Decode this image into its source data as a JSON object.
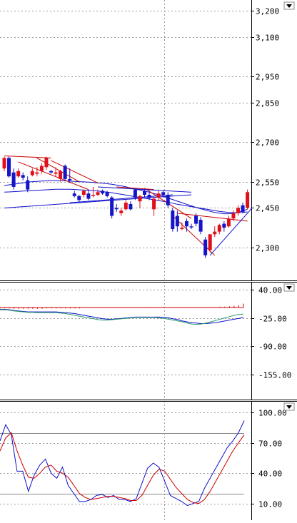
{
  "chart_data": [
    {
      "type": "candlestick",
      "panel": "price",
      "yticks": [
        3200,
        3100,
        2950,
        2850,
        2700,
        2550,
        2450,
        2300
      ],
      "ytick_labels": [
        "3,200",
        "3,100",
        "2,950",
        "2,850",
        "2,700",
        "2,550",
        "2,450",
        "2,300"
      ],
      "ylim": [
        2180,
        3235
      ],
      "grid": true,
      "candles": [
        {
          "o": 2600,
          "h": 2645,
          "l": 2590,
          "c": 2640,
          "up": true
        },
        {
          "o": 2640,
          "h": 2645,
          "l": 2565,
          "c": 2570,
          "up": false
        },
        {
          "o": 2585,
          "h": 2600,
          "l": 2520,
          "c": 2530,
          "up": false
        },
        {
          "o": 2570,
          "h": 2600,
          "l": 2565,
          "c": 2590,
          "up": true
        },
        {
          "o": 2575,
          "h": 2585,
          "l": 2555,
          "c": 2565,
          "up": false
        },
        {
          "o": 2555,
          "h": 2570,
          "l": 2510,
          "c": 2520,
          "up": false
        },
        {
          "o": 2575,
          "h": 2600,
          "l": 2570,
          "c": 2590,
          "up": true
        },
        {
          "o": 2585,
          "h": 2605,
          "l": 2570,
          "c": 2580,
          "up": true
        },
        {
          "o": 2590,
          "h": 2620,
          "l": 2580,
          "c": 2610,
          "up": true
        },
        {
          "o": 2605,
          "h": 2645,
          "l": 2595,
          "c": 2640,
          "up": true
        },
        {
          "o": 2590,
          "h": 2595,
          "l": 2580,
          "c": 2585,
          "up": false
        },
        {
          "o": 2585,
          "h": 2605,
          "l": 2570,
          "c": 2580,
          "up": true
        },
        {
          "o": 2560,
          "h": 2595,
          "l": 2550,
          "c": 2590,
          "up": true
        },
        {
          "o": 2610,
          "h": 2615,
          "l": 2555,
          "c": 2560,
          "up": false
        },
        {
          "o": 2560,
          "h": 2600,
          "l": 2545,
          "c": 2555,
          "up": false
        },
        {
          "o": 2505,
          "h": 2515,
          "l": 2490,
          "c": 2495,
          "up": false
        },
        {
          "o": 2495,
          "h": 2500,
          "l": 2470,
          "c": 2480,
          "up": false
        },
        {
          "o": 2500,
          "h": 2520,
          "l": 2490,
          "c": 2515,
          "up": true
        },
        {
          "o": 2505,
          "h": 2520,
          "l": 2480,
          "c": 2485,
          "up": false
        },
        {
          "o": 2500,
          "h": 2530,
          "l": 2490,
          "c": 2500,
          "up": true
        },
        {
          "o": 2500,
          "h": 2520,
          "l": 2495,
          "c": 2510,
          "up": true
        },
        {
          "o": 2515,
          "h": 2520,
          "l": 2500,
          "c": 2505,
          "up": false
        },
        {
          "o": 2510,
          "h": 2515,
          "l": 2490,
          "c": 2495,
          "up": false
        },
        {
          "o": 2490,
          "h": 2495,
          "l": 2410,
          "c": 2420,
          "up": false
        },
        {
          "o": 2450,
          "h": 2465,
          "l": 2435,
          "c": 2445,
          "up": false
        },
        {
          "o": 2430,
          "h": 2450,
          "l": 2420,
          "c": 2440,
          "up": true
        },
        {
          "o": 2445,
          "h": 2480,
          "l": 2440,
          "c": 2470,
          "up": true
        },
        {
          "o": 2465,
          "h": 2475,
          "l": 2440,
          "c": 2445,
          "up": false
        },
        {
          "o": 2520,
          "h": 2525,
          "l": 2480,
          "c": 2490,
          "up": false
        },
        {
          "o": 2475,
          "h": 2500,
          "l": 2450,
          "c": 2495,
          "up": true
        },
        {
          "o": 2515,
          "h": 2520,
          "l": 2490,
          "c": 2500,
          "up": false
        },
        {
          "o": 2500,
          "h": 2515,
          "l": 2480,
          "c": 2490,
          "up": false
        },
        {
          "o": 2445,
          "h": 2490,
          "l": 2420,
          "c": 2485,
          "up": true
        },
        {
          "o": 2490,
          "h": 2515,
          "l": 2480,
          "c": 2505,
          "up": true
        },
        {
          "o": 2510,
          "h": 2515,
          "l": 2490,
          "c": 2500,
          "up": false
        },
        {
          "o": 2500,
          "h": 2510,
          "l": 2450,
          "c": 2460,
          "up": false
        },
        {
          "o": 2440,
          "h": 2450,
          "l": 2360,
          "c": 2370,
          "up": false
        },
        {
          "o": 2420,
          "h": 2440,
          "l": 2360,
          "c": 2380,
          "up": false
        },
        {
          "o": 2370,
          "h": 2395,
          "l": 2365,
          "c": 2375,
          "up": true
        },
        {
          "o": 2400,
          "h": 2410,
          "l": 2360,
          "c": 2380,
          "up": false
        },
        {
          "o": 2380,
          "h": 2390,
          "l": 2370,
          "c": 2380,
          "up": false
        },
        {
          "o": 2420,
          "h": 2430,
          "l": 2380,
          "c": 2390,
          "up": false
        },
        {
          "o": 2405,
          "h": 2415,
          "l": 2350,
          "c": 2360,
          "up": false
        },
        {
          "o": 2330,
          "h": 2340,
          "l": 2260,
          "c": 2270,
          "up": false
        },
        {
          "o": 2290,
          "h": 2350,
          "l": 2280,
          "c": 2350,
          "up": true
        },
        {
          "o": 2350,
          "h": 2380,
          "l": 2340,
          "c": 2360,
          "up": true
        },
        {
          "o": 2360,
          "h": 2390,
          "l": 2350,
          "c": 2385,
          "up": true
        },
        {
          "o": 2375,
          "h": 2400,
          "l": 2360,
          "c": 2390,
          "up": false
        },
        {
          "o": 2380,
          "h": 2420,
          "l": 2375,
          "c": 2410,
          "up": true
        },
        {
          "o": 2410,
          "h": 2440,
          "l": 2400,
          "c": 2430,
          "up": true
        },
        {
          "o": 2430,
          "h": 2460,
          "l": 2420,
          "c": 2450,
          "up": true
        },
        {
          "o": 2435,
          "h": 2470,
          "l": 2430,
          "c": 2460,
          "up": false
        },
        {
          "o": 2450,
          "h": 2520,
          "l": 2445,
          "c": 2510,
          "up": true
        }
      ],
      "moving_averages": [
        {
          "color": "#1010cc",
          "values": [
            2535,
            2538,
            2540,
            2543,
            2545,
            2548,
            2550,
            2551,
            2552,
            2553,
            2554,
            2554,
            2553,
            2553,
            2552,
            2551,
            2550,
            2549,
            2548,
            2547,
            2545,
            2544,
            2542,
            2540,
            2537,
            2534,
            2530,
            2526,
            2522,
            2518,
            2514,
            2510,
            2505,
            2500,
            2494,
            2488,
            2482,
            2476,
            2470,
            2464,
            2458,
            2452,
            2447,
            2442,
            2437,
            2433,
            2430,
            2428,
            2428,
            2430,
            2434,
            2439,
            2445
          ]
        },
        {
          "color": "#1010cc",
          "values": [
            2510,
            2511,
            2512,
            2513,
            2514,
            2515,
            2516,
            2517,
            2518,
            2519,
            2520,
            2521,
            2521,
            2521,
            2521,
            2520,
            2519,
            2518,
            2517,
            2516,
            2514,
            2512,
            2510,
            2508,
            2505,
            2502,
            2499,
            2496,
            2493,
            2490,
            2487,
            2484,
            2481,
            2478,
            2475,
            2472,
            2468,
            2464,
            2461,
            2458,
            2455,
            2452,
            2449,
            2446,
            2443,
            2440,
            2437,
            2435,
            2433,
            2432,
            2432,
            2433,
            2435
          ]
        }
      ],
      "trendlines": [
        {
          "color": "#cc0000",
          "points": [
            [
              0,
              2648
            ],
            [
              10,
              2640
            ]
          ]
        },
        {
          "color": "#cc0000",
          "points": [
            [
              3,
              2625
            ],
            [
              18,
              2520
            ]
          ]
        },
        {
          "color": "#cc0000",
          "points": [
            [
              7,
              2640
            ],
            [
              16,
              2550
            ]
          ]
        },
        {
          "color": "#cc0000",
          "points": [
            [
              10,
              2630
            ],
            [
              20,
              2545
            ]
          ]
        },
        {
          "color": "#cc0000",
          "points": [
            [
              24,
              2530
            ],
            [
              32,
              2520
            ]
          ]
        },
        {
          "color": "#cc0000",
          "points": [
            [
              30,
              2525
            ],
            [
              40,
              2410
            ]
          ]
        },
        {
          "color": "#cc0000",
          "points": [
            [
              36,
              2420
            ],
            [
              45,
              2270
            ]
          ]
        },
        {
          "color": "#cc0000",
          "points": [
            [
              37,
              2430
            ],
            [
              52,
              2400
            ]
          ]
        },
        {
          "color": "#1010cc",
          "points": [
            [
              0,
              2450
            ],
            [
              40,
              2500
            ]
          ]
        },
        {
          "color": "#1010cc",
          "points": [
            [
              14,
              2470
            ],
            [
              36,
              2500
            ]
          ]
        },
        {
          "color": "#1010cc",
          "points": [
            [
              20,
              2530
            ],
            [
              40,
              2510
            ]
          ]
        },
        {
          "color": "#1010cc",
          "points": [
            [
              44,
              2270
            ],
            [
              53,
              2450
            ]
          ]
        }
      ]
    },
    {
      "type": "line",
      "panel": "oscillator",
      "yticks": [
        40,
        -25,
        -90,
        -155
      ],
      "ytick_labels": [
        "40.00",
        "-25.00",
        "-90.00",
        "-155.00"
      ],
      "ylim": [
        -210,
        55
      ],
      "grid": true,
      "series": [
        {
          "color": "#1010cc",
          "values": [
            -5,
            -5,
            -6,
            -8,
            -9,
            -10,
            -11,
            -11,
            -11,
            -11,
            -11,
            -11,
            -11,
            -12,
            -13,
            -14,
            -15,
            -17,
            -19,
            -21,
            -23,
            -25,
            -27,
            -28,
            -28,
            -27,
            -26,
            -25,
            -24,
            -23,
            -23,
            -23,
            -23,
            -23,
            -23,
            -24,
            -25,
            -27,
            -29,
            -32,
            -34,
            -36,
            -37,
            -38,
            -38,
            -37,
            -36,
            -34,
            -32,
            -30,
            -28,
            -26,
            -24
          ]
        },
        {
          "color": "#2a9d6b",
          "values": [
            -6,
            -6,
            -7,
            -9,
            -10,
            -11,
            -12,
            -12,
            -13,
            -13,
            -13,
            -13,
            -13,
            -14,
            -15,
            -17,
            -19,
            -21,
            -23,
            -25,
            -27,
            -29,
            -30,
            -30,
            -29,
            -28,
            -27,
            -26,
            -25,
            -24,
            -24,
            -24,
            -24,
            -24,
            -25,
            -26,
            -28,
            -30,
            -32,
            -34,
            -37,
            -39,
            -40,
            -39,
            -37,
            -34,
            -31,
            -28,
            -25,
            -22,
            -19,
            -17,
            -16
          ]
        }
      ],
      "histogram": {
        "color": "#cc0000",
        "values": [
          -2,
          -2,
          -2,
          -3,
          -3,
          -3,
          -3,
          -3,
          -3,
          -3,
          -2,
          -2,
          -2,
          -2,
          -2,
          -2,
          -2,
          -2,
          -1,
          -1,
          -1,
          -1,
          -1,
          -1,
          -1,
          -1,
          -1,
          -1,
          -1,
          -1,
          -1,
          -1,
          -1,
          -1,
          -1,
          -1,
          -1,
          -1,
          -1,
          -1,
          -1,
          -1,
          -1,
          -1,
          -1,
          1,
          1,
          2,
          2,
          3,
          4,
          5,
          9
        ]
      }
    },
    {
      "type": "line",
      "panel": "stochastic",
      "yticks": [
        100,
        70,
        40,
        10
      ],
      "ytick_labels": [
        "100.00",
        "70.00",
        "40.00",
        "10.00"
      ],
      "ylim": [
        -5,
        110
      ],
      "reference_lines": [
        80,
        20
      ],
      "grid": true,
      "series": [
        {
          "color": "#1010cc",
          "values": [
            72,
            88,
            78,
            42,
            42,
            22,
            38,
            48,
            54,
            40,
            35,
            46,
            28,
            20,
            12,
            12,
            14,
            18,
            19,
            16,
            18,
            14,
            14,
            12,
            15,
            30,
            45,
            50,
            46,
            32,
            18,
            15,
            12,
            8,
            10,
            12,
            25,
            35,
            45,
            55,
            65,
            72,
            80,
            92
          ]
        },
        {
          "color": "#cc0000",
          "values": [
            62,
            75,
            80,
            62,
            48,
            36,
            35,
            40,
            46,
            48,
            42,
            40,
            36,
            28,
            20,
            16,
            14,
            15,
            16,
            17,
            17,
            16,
            15,
            13,
            13,
            18,
            28,
            38,
            44,
            42,
            34,
            26,
            20,
            14,
            11,
            10,
            14,
            22,
            32,
            42,
            52,
            62,
            70,
            78
          ]
        }
      ]
    }
  ]
}
